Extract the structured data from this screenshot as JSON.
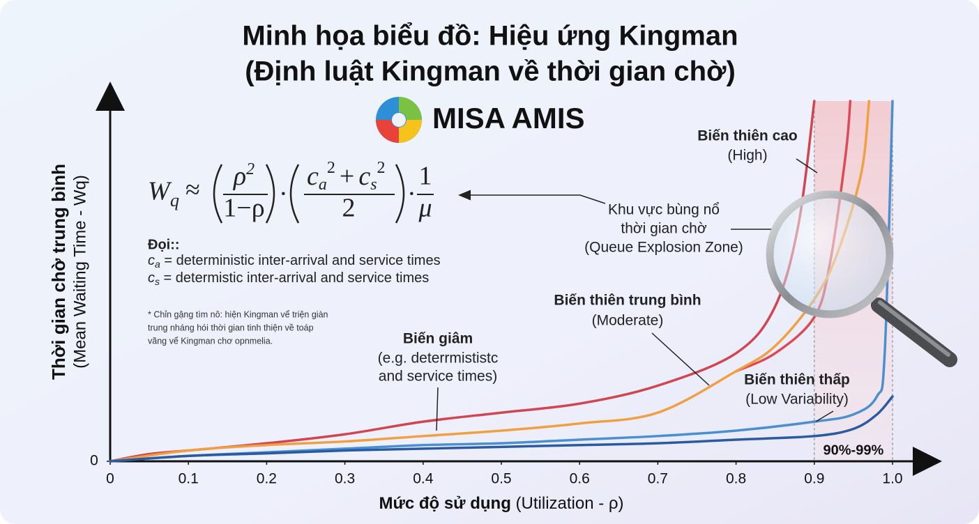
{
  "chart_data": {
    "type": "line",
    "title": "Minh họa biểu đồ: Hiệu ứng Kingman",
    "subtitle": "(Định luật Kingman về thời gian chờ)",
    "brand": "MISA AMIS",
    "y_label": "Thời gian chờ trung bình",
    "y_label_2": "(Mean Waiting Time - Wq)",
    "x_label": "Mức độ sử dụng",
    "x_label_2": " (Utilization - ρ)",
    "xlim": [
      0,
      1
    ],
    "xticks": [
      0,
      0.1,
      0.2,
      0.3,
      0.4,
      0.5,
      0.6,
      0.7,
      0.8,
      0.9,
      {
        "value": 1,
        "label": "1.0"
      }
    ],
    "ylim": [
      0,
      100
    ],
    "yticks": [
      0
    ],
    "zone": {
      "range": [
        0.9,
        1
      ],
      "label": "90%-99%"
    },
    "series": [
      {
        "color": "#d0454f",
        "x": [
          0,
          0.05,
          0.1,
          0.2,
          0.3,
          0.4,
          0.5,
          0.6,
          0.7,
          0.8,
          0.85,
          0.88,
          0.9
        ],
        "values": [
          0,
          2,
          3,
          5,
          7.5,
          11,
          13.5,
          16,
          21,
          30,
          43,
          66,
          100
        ]
      },
      {
        "color": "#dc4b55",
        "x": [
          0.8,
          0.85,
          0.9,
          0.92,
          0.94,
          0.946
        ],
        "values": [
          25,
          30,
          40,
          55,
          85,
          100
        ]
      },
      {
        "color": "#f0a040",
        "x": [
          0,
          0.1,
          0.2,
          0.3,
          0.4,
          0.5,
          0.6,
          0.7,
          0.8,
          0.85,
          0.9,
          0.93,
          0.96,
          0.97
        ],
        "values": [
          0,
          3,
          4.5,
          5.5,
          7,
          8.5,
          10.5,
          13.5,
          25,
          32,
          45,
          58,
          80,
          100
        ]
      },
      {
        "color": "#4a90d0",
        "x": [
          0,
          0.1,
          0.2,
          0.3,
          0.4,
          0.5,
          0.6,
          0.7,
          0.8,
          0.9,
          0.95,
          0.98,
          0.99,
          1
        ],
        "values": [
          0,
          1.5,
          2.5,
          3.5,
          4.5,
          5,
          6,
          7,
          8.5,
          11,
          13,
          18,
          30,
          100
        ]
      },
      {
        "color": "#2a5aa0",
        "x": [
          0,
          0.1,
          0.2,
          0.3,
          0.4,
          0.5,
          0.6,
          0.7,
          0.8,
          0.9,
          0.95,
          0.98,
          1
        ],
        "values": [
          0,
          1.5,
          2.2,
          3,
          3.5,
          4,
          4.5,
          5,
          6,
          7,
          9,
          13,
          18
        ]
      }
    ],
    "annotations": {
      "high": [
        "Biến thiên cao",
        "(High)"
      ],
      "zone": [
        "Khu vực bùng nổ",
        "thời gian chờ",
        "(Queue Explosion Zone)"
      ],
      "moderate": [
        "Biến thiên trung bình",
        "(Moderate)"
      ],
      "low_det": [
        "Biến giâm",
        "(e.g. deterrmististc",
        "and service times)"
      ],
      "low": [
        "Biến thiên thấp",
        "(Low Variability)"
      ]
    },
    "formula": {
      "W": "W",
      "q": "q",
      "approx": "≈",
      "rho": "ρ",
      "two": "2",
      "one_minus_rho": "1−ρ",
      "dot": "·",
      "c": "c",
      "a": "a",
      "plus": "+",
      "s": "s",
      "one": "1",
      "mu": "μ"
    },
    "notes": {
      "heading": "Đọi::",
      "c": "c",
      "a": "a",
      "s": "s",
      "ca_text": " = deterministic inter-arrival and service times",
      "cs_text": " = determistic inter-arrival and service times"
    },
    "footnote": [
      "* Chỉn gậng tìm nô: hiện Kingman vể triện giàn",
      "trung nháng hói thời gian tinh thiện về toáp",
      "vãng vể Kingman chơ opnmelia."
    ]
  }
}
